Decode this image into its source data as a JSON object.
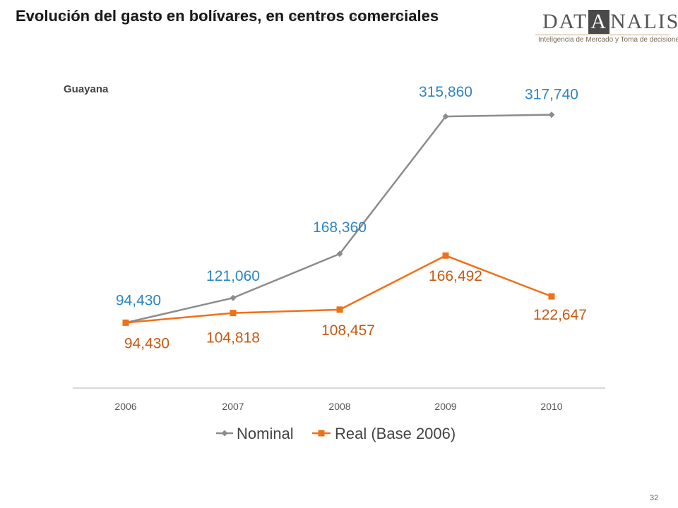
{
  "slide": {
    "title": "Evolución del gasto en bolívares, en centros comerciales",
    "region": "Guayana",
    "page_number": "32"
  },
  "logo": {
    "text_before": "DAT",
    "text_highlight": "A",
    "text_after": "NALISIS",
    "tagline": "Inteligencia de Mercado y Toma de decisiones"
  },
  "colors": {
    "nominal_line": "#8c8c8c",
    "nominal_label": "#2e86c1",
    "real_line": "#f07018",
    "real_label": "#c65a12",
    "axis": "#cccccc",
    "tick_label": "#555555"
  },
  "chart_data": {
    "type": "line",
    "categories": [
      "2006",
      "2007",
      "2008",
      "2009",
      "2010"
    ],
    "series": [
      {
        "name": "Nominal",
        "values": [
          94430,
          121060,
          168360,
          315860,
          317740
        ],
        "labels": [
          "94,430",
          "121,060",
          "168,360",
          "315,860",
          "317,740"
        ],
        "marker": "diamond"
      },
      {
        "name": "Real (Base 2006)",
        "values": [
          94430,
          104818,
          108457,
          166492,
          122647
        ],
        "labels": [
          "94,430",
          "104,818",
          "108,457",
          "166,492",
          "122,647"
        ],
        "marker": "square"
      }
    ],
    "ylim": [
      0,
      350000
    ],
    "grid": false,
    "legend": "bottom"
  }
}
